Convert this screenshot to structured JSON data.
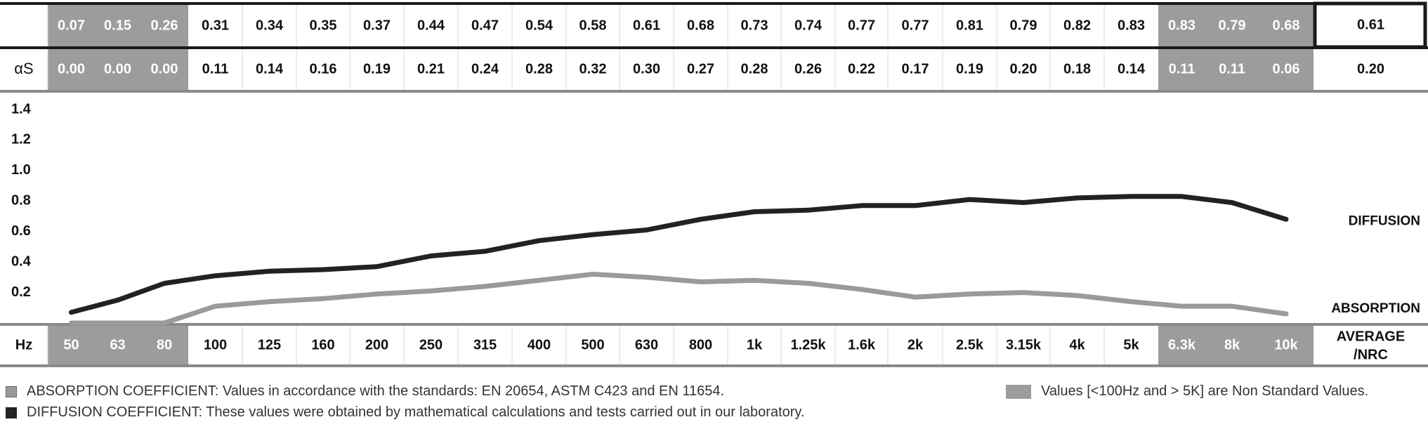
{
  "chart_data": {
    "type": "line",
    "categories": [
      "50",
      "63",
      "80",
      "100",
      "125",
      "160",
      "200",
      "250",
      "315",
      "400",
      "500",
      "630",
      "800",
      "1k",
      "1.25k",
      "1.6k",
      "2k",
      "2.5k",
      "3.15k",
      "4k",
      "5k",
      "6.3k",
      "8k",
      "10k"
    ],
    "series": [
      {
        "name": "DIFFUSION",
        "values": [
          0.07,
          0.15,
          0.26,
          0.31,
          0.34,
          0.35,
          0.37,
          0.44,
          0.47,
          0.54,
          0.58,
          0.61,
          0.68,
          0.73,
          0.74,
          0.77,
          0.77,
          0.81,
          0.79,
          0.82,
          0.83,
          0.83,
          0.79,
          0.68
        ],
        "color": "#222222"
      },
      {
        "name": "ABSORPTION",
        "values": [
          0.0,
          0.0,
          0.0,
          0.11,
          0.14,
          0.16,
          0.19,
          0.21,
          0.24,
          0.28,
          0.32,
          0.3,
          0.27,
          0.28,
          0.26,
          0.22,
          0.17,
          0.19,
          0.2,
          0.18,
          0.14,
          0.11,
          0.11,
          0.06
        ],
        "color": "#9a9a9a"
      }
    ],
    "yticks": [
      "0.2",
      "0.4",
      "0.6",
      "0.8",
      "1.0",
      "1.2",
      "1.4"
    ],
    "ylim": [
      0,
      1.4
    ],
    "diffusion_average": "0.61",
    "absorption_average": "0.20",
    "row_label_absorption": "αS",
    "row_label_freq": "Hz",
    "average_label_line1": "AVERAGE",
    "average_label_line2": "/NRC",
    "non_standard_indices": [
      0,
      1,
      2,
      21,
      22,
      23
    ],
    "colors": {
      "non_standard_fill": "#9c9c9c",
      "diffusion_line": "#222222",
      "absorption_line": "#9a9a9a",
      "rule": "#8a8a8a"
    }
  },
  "legend": {
    "absorption": "ABSORPTION COEFFICIENT: Values in accordance with the standards: EN 20654, ASTM C423 and EN 11654.",
    "diffusion": "DIFFUSION COEFFICIENT: These values were obtained by mathematical calculations and tests carried out in our laboratory.",
    "non_standard": "Values [<100Hz and > 5K] are Non Standard Values."
  }
}
